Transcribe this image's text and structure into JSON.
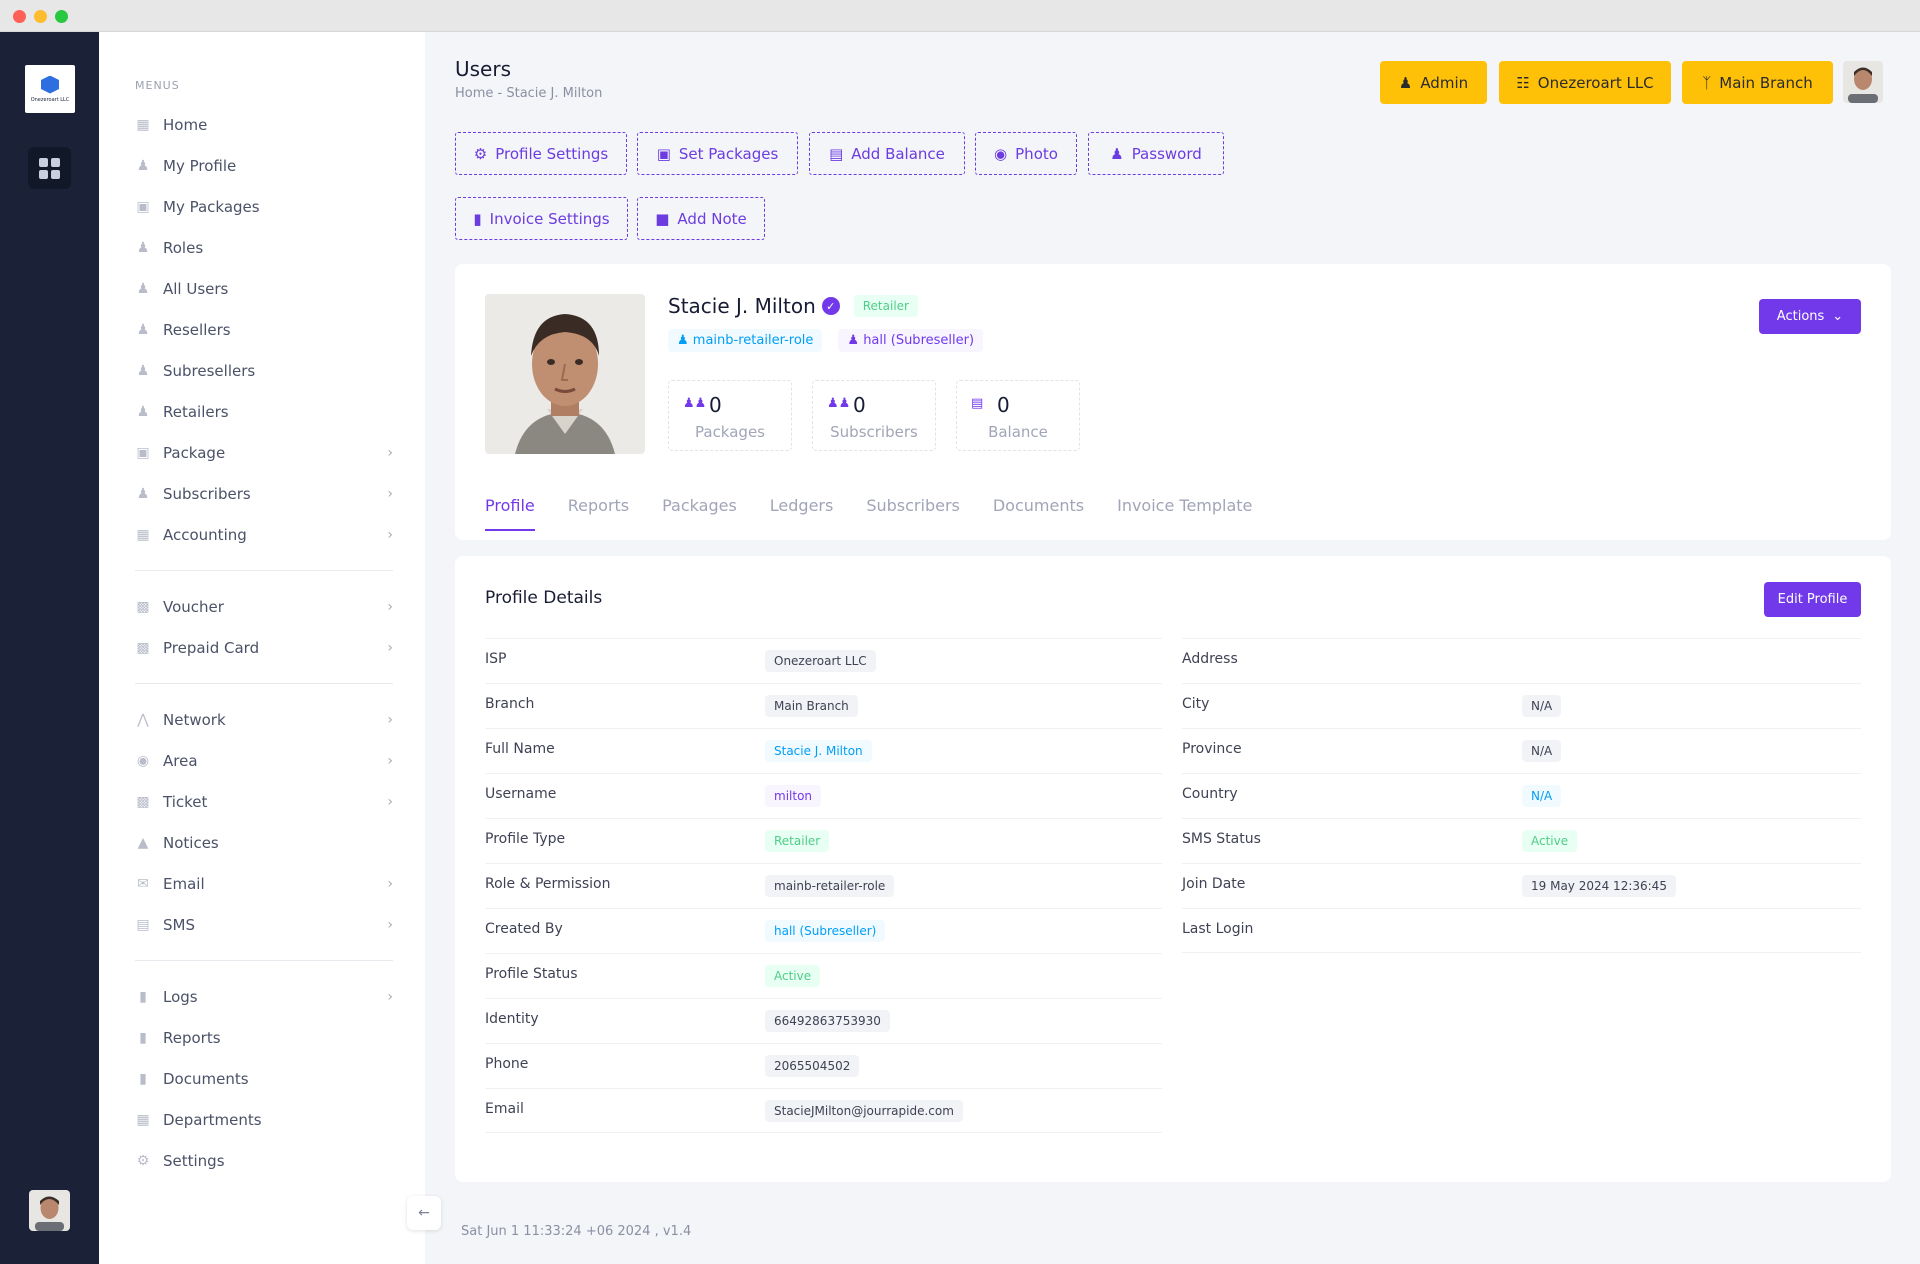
{
  "sidebar": {
    "menus_label": "MENUS",
    "items": [
      {
        "label": "Home",
        "icon": "grid-icon",
        "chev": false
      },
      {
        "label": "My Profile",
        "icon": "user-icon",
        "chev": false
      },
      {
        "label": "My Packages",
        "icon": "box-icon",
        "chev": false
      },
      {
        "label": "Roles",
        "icon": "user-icon",
        "chev": false
      },
      {
        "label": "All Users",
        "icon": "users-icon",
        "chev": false
      },
      {
        "label": "Resellers",
        "icon": "user-icon",
        "chev": false
      },
      {
        "label": "Subresellers",
        "icon": "user-icon",
        "chev": false
      },
      {
        "label": "Retailers",
        "icon": "user-icon",
        "chev": false
      },
      {
        "label": "Package",
        "icon": "box-icon",
        "chev": true
      },
      {
        "label": "Subscribers",
        "icon": "users-icon",
        "chev": true
      },
      {
        "label": "Accounting",
        "icon": "calculator-icon",
        "chev": true
      }
    ],
    "items2": [
      {
        "label": "Voucher",
        "icon": "ticket-icon",
        "chev": true
      },
      {
        "label": "Prepaid Card",
        "icon": "ticket-icon",
        "chev": true
      }
    ],
    "items3": [
      {
        "label": "Network",
        "icon": "antenna-icon",
        "chev": true
      },
      {
        "label": "Area",
        "icon": "map-pin-icon",
        "chev": true
      },
      {
        "label": "Ticket",
        "icon": "ticket-icon",
        "chev": true
      },
      {
        "label": "Notices",
        "icon": "bell-icon",
        "chev": false
      },
      {
        "label": "Email",
        "icon": "mail-icon",
        "chev": true
      },
      {
        "label": "SMS",
        "icon": "message-icon",
        "chev": true
      }
    ],
    "items4": [
      {
        "label": "Logs",
        "icon": "book-icon",
        "chev": true
      },
      {
        "label": "Reports",
        "icon": "book-icon",
        "chev": false
      },
      {
        "label": "Documents",
        "icon": "book-icon",
        "chev": false
      },
      {
        "label": "Departments",
        "icon": "building-icon",
        "chev": false
      },
      {
        "label": "Settings",
        "icon": "gears-icon",
        "chev": false
      }
    ]
  },
  "header": {
    "title": "Users",
    "breadcrumb": "Home  -  Stacie J. Milton",
    "admin_label": "Admin",
    "company_label": "Onezeroart LLC",
    "branch_label": "Main Branch"
  },
  "toolbar": {
    "profile_settings": "Profile Settings",
    "set_packages": "Set Packages",
    "add_balance": "Add Balance",
    "photo": "Photo",
    "password": "Password",
    "invoice_settings": "Invoice Settings",
    "add_note": "Add Note"
  },
  "profile": {
    "name": "Stacie J. Milton",
    "type_badge": "Retailer",
    "role_badge": "mainb-retailer-role",
    "creator_badge": "hall (Subreseller)",
    "actions_label": "Actions",
    "stats": [
      {
        "value": "0",
        "label": "Packages"
      },
      {
        "value": "0",
        "label": "Subscribers"
      },
      {
        "value": "0",
        "label": "Balance"
      }
    ],
    "tabs": [
      "Profile",
      "Reports",
      "Packages",
      "Ledgers",
      "Subscribers",
      "Documents",
      "Invoice Template"
    ]
  },
  "details": {
    "title": "Profile Details",
    "edit_label": "Edit Profile",
    "left": [
      {
        "key": "ISP",
        "value": "Onezeroart LLC",
        "style": "grey"
      },
      {
        "key": "Branch",
        "value": "Main Branch",
        "style": "grey"
      },
      {
        "key": "Full Name",
        "value": "Stacie J. Milton",
        "style": "blue"
      },
      {
        "key": "Username",
        "value": "milton",
        "style": "purple"
      },
      {
        "key": "Profile Type",
        "value": "Retailer",
        "style": "green"
      },
      {
        "key": "Role & Permission",
        "value": "mainb-retailer-role",
        "style": "grey"
      },
      {
        "key": "Created By",
        "value": "hall (Subreseller)",
        "style": "blue"
      },
      {
        "key": "Profile Status",
        "value": "Active",
        "style": "green"
      },
      {
        "key": "Identity",
        "value": "66492863753930",
        "style": "grey"
      },
      {
        "key": "Phone",
        "value": "2065504502",
        "style": "grey"
      },
      {
        "key": "Email",
        "value": "StacieJMilton@jourrapide.com",
        "style": "grey"
      }
    ],
    "right": [
      {
        "key": "Address",
        "value": "",
        "style": ""
      },
      {
        "key": "City",
        "value": "N/A",
        "style": "grey"
      },
      {
        "key": "Province",
        "value": "N/A",
        "style": "grey"
      },
      {
        "key": "Country",
        "value": "N/A",
        "style": "blue"
      },
      {
        "key": "SMS Status",
        "value": "Active",
        "style": "green"
      },
      {
        "key": "Join Date",
        "value": "19 May 2024 12:36:45",
        "style": "grey"
      },
      {
        "key": "Last Login",
        "value": "",
        "style": ""
      }
    ]
  },
  "footer": {
    "text": "Sat Jun 1 11:33:24 +06 2024 ,    v1.4"
  }
}
